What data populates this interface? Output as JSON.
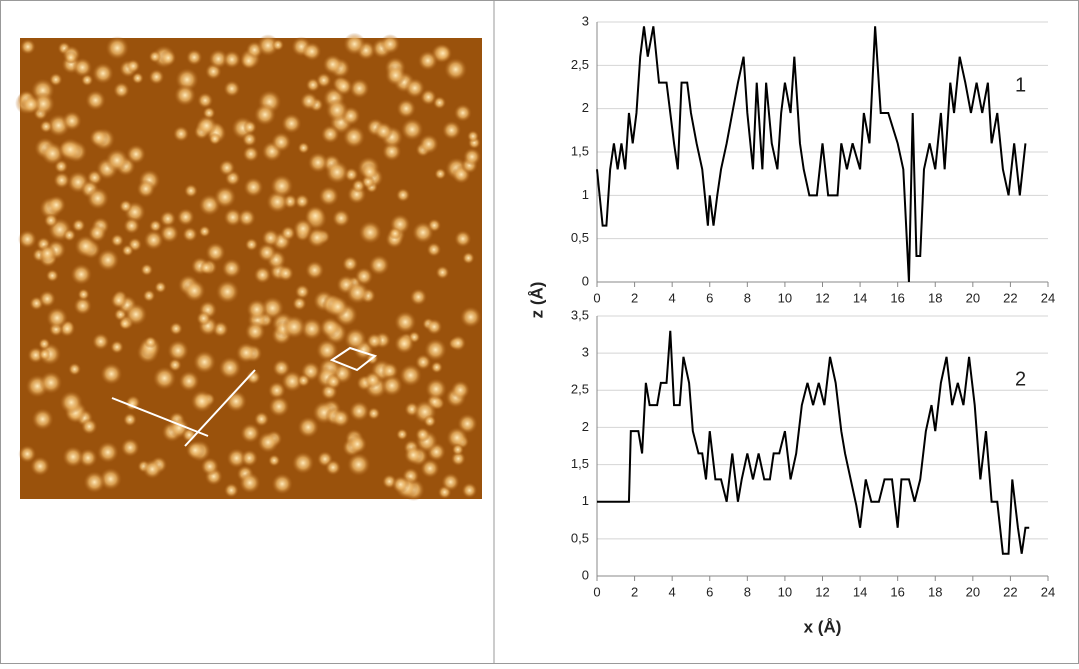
{
  "chart_data": [
    {
      "type": "line",
      "annotation": "1",
      "y_label": "z (Å)",
      "color": "#000000",
      "grid": true,
      "xlim": [
        0,
        24
      ],
      "xticks": [
        0,
        2,
        4,
        6,
        8,
        10,
        12,
        14,
        16,
        18,
        20,
        22,
        24
      ],
      "ylim": [
        0,
        3
      ],
      "yticks": [
        0,
        {
          "value": 0.5,
          "label": "0,5"
        },
        1,
        {
          "value": 1.5,
          "label": "1,5"
        },
        2,
        {
          "value": 2.5,
          "label": "2,5"
        },
        3
      ],
      "x": [
        0,
        0.3,
        0.5,
        0.7,
        0.9,
        1.1,
        1.3,
        1.5,
        1.7,
        1.9,
        2.1,
        2.3,
        2.5,
        2.7,
        3.0,
        3.3,
        3.7,
        3.9,
        4.1,
        4.3,
        4.5,
        4.8,
        5.0,
        5.3,
        5.6,
        5.9,
        6.0,
        6.2,
        6.4,
        6.6,
        6.9,
        7.2,
        7.5,
        7.8,
        8.0,
        8.3,
        8.5,
        8.8,
        9.0,
        9.3,
        9.6,
        9.8,
        10.0,
        10.3,
        10.5,
        10.8,
        11.0,
        11.3,
        11.7,
        12.0,
        12.3,
        12.8,
        13.0,
        13.3,
        13.6,
        14.0,
        14.2,
        14.5,
        14.8,
        15.1,
        15.5,
        16.0,
        16.3,
        16.6,
        16.8,
        17.0,
        17.2,
        17.4,
        17.7,
        18.0,
        18.3,
        18.5,
        18.8,
        19.0,
        19.3,
        19.6,
        19.9,
        20.2,
        20.5,
        20.8,
        21.0,
        21.3,
        21.6,
        21.9,
        22.2,
        22.5,
        22.8
      ],
      "values": [
        1.3,
        0.65,
        0.65,
        1.3,
        1.6,
        1.3,
        1.6,
        1.3,
        1.95,
        1.6,
        1.95,
        2.6,
        2.95,
        2.6,
        2.95,
        2.3,
        2.3,
        1.95,
        1.6,
        1.3,
        2.3,
        2.3,
        1.95,
        1.6,
        1.3,
        0.65,
        1.0,
        0.65,
        1.0,
        1.3,
        1.6,
        1.95,
        2.3,
        2.6,
        1.95,
        1.3,
        2.3,
        1.3,
        2.3,
        1.6,
        1.3,
        1.95,
        2.3,
        1.95,
        2.6,
        1.6,
        1.3,
        1.0,
        1.0,
        1.6,
        1.0,
        1.0,
        1.6,
        1.3,
        1.6,
        1.3,
        1.95,
        1.6,
        2.95,
        1.95,
        1.95,
        1.6,
        1.3,
        0.0,
        1.95,
        0.3,
        0.3,
        1.3,
        1.6,
        1.3,
        1.95,
        1.3,
        2.3,
        1.95,
        2.6,
        2.3,
        1.95,
        2.3,
        1.95,
        2.3,
        1.6,
        1.95,
        1.3,
        1.0,
        1.6,
        1.0,
        1.6
      ]
    },
    {
      "type": "line",
      "annotation": "2",
      "x_label": "x (Å)",
      "color": "#000000",
      "grid": true,
      "xlim": [
        0,
        24
      ],
      "xticks": [
        0,
        2,
        4,
        6,
        8,
        10,
        12,
        14,
        16,
        18,
        20,
        22,
        24
      ],
      "ylim": [
        0,
        3.5
      ],
      "yticks": [
        0,
        {
          "value": 0.5,
          "label": "0,5"
        },
        1,
        {
          "value": 1.5,
          "label": "1,5"
        },
        2,
        {
          "value": 2.5,
          "label": "2,5"
        },
        3,
        {
          "value": 3.5,
          "label": "3,5"
        }
      ],
      "x": [
        0,
        1.7,
        1.8,
        2.2,
        2.4,
        2.6,
        2.8,
        3.2,
        3.4,
        3.7,
        3.9,
        4.1,
        4.4,
        4.6,
        4.9,
        5.1,
        5.4,
        5.6,
        5.8,
        6.0,
        6.3,
        6.6,
        6.9,
        7.2,
        7.5,
        7.7,
        8.0,
        8.3,
        8.6,
        8.9,
        9.2,
        9.4,
        9.7,
        10.0,
        10.3,
        10.6,
        10.9,
        11.2,
        11.5,
        11.8,
        12.1,
        12.4,
        12.7,
        13.0,
        13.2,
        13.5,
        13.8,
        14.0,
        14.3,
        14.6,
        15.0,
        15.3,
        15.7,
        16.0,
        16.2,
        16.6,
        16.9,
        17.2,
        17.5,
        17.8,
        18.0,
        18.3,
        18.6,
        18.9,
        19.2,
        19.5,
        19.8,
        20.1,
        20.4,
        20.7,
        21.0,
        21.3,
        21.6,
        21.9,
        22.1,
        22.4,
        22.6,
        22.8,
        23.0
      ],
      "values": [
        1.0,
        1.0,
        1.95,
        1.95,
        1.65,
        2.6,
        2.3,
        2.3,
        2.6,
        2.6,
        3.3,
        2.3,
        2.3,
        2.95,
        2.6,
        1.95,
        1.65,
        1.65,
        1.3,
        1.95,
        1.3,
        1.3,
        1.0,
        1.65,
        1.0,
        1.3,
        1.65,
        1.3,
        1.65,
        1.3,
        1.3,
        1.65,
        1.65,
        1.95,
        1.3,
        1.65,
        2.3,
        2.6,
        2.3,
        2.6,
        2.3,
        2.95,
        2.6,
        1.95,
        1.65,
        1.3,
        0.95,
        0.65,
        1.3,
        1.0,
        1.0,
        1.3,
        1.3,
        0.65,
        1.3,
        1.3,
        1.0,
        1.3,
        1.95,
        2.3,
        1.95,
        2.6,
        2.95,
        2.3,
        2.6,
        2.3,
        2.95,
        2.3,
        1.3,
        1.95,
        1.0,
        1.0,
        0.3,
        0.3,
        1.3,
        0.65,
        0.3,
        0.65,
        0.65
      ]
    }
  ]
}
